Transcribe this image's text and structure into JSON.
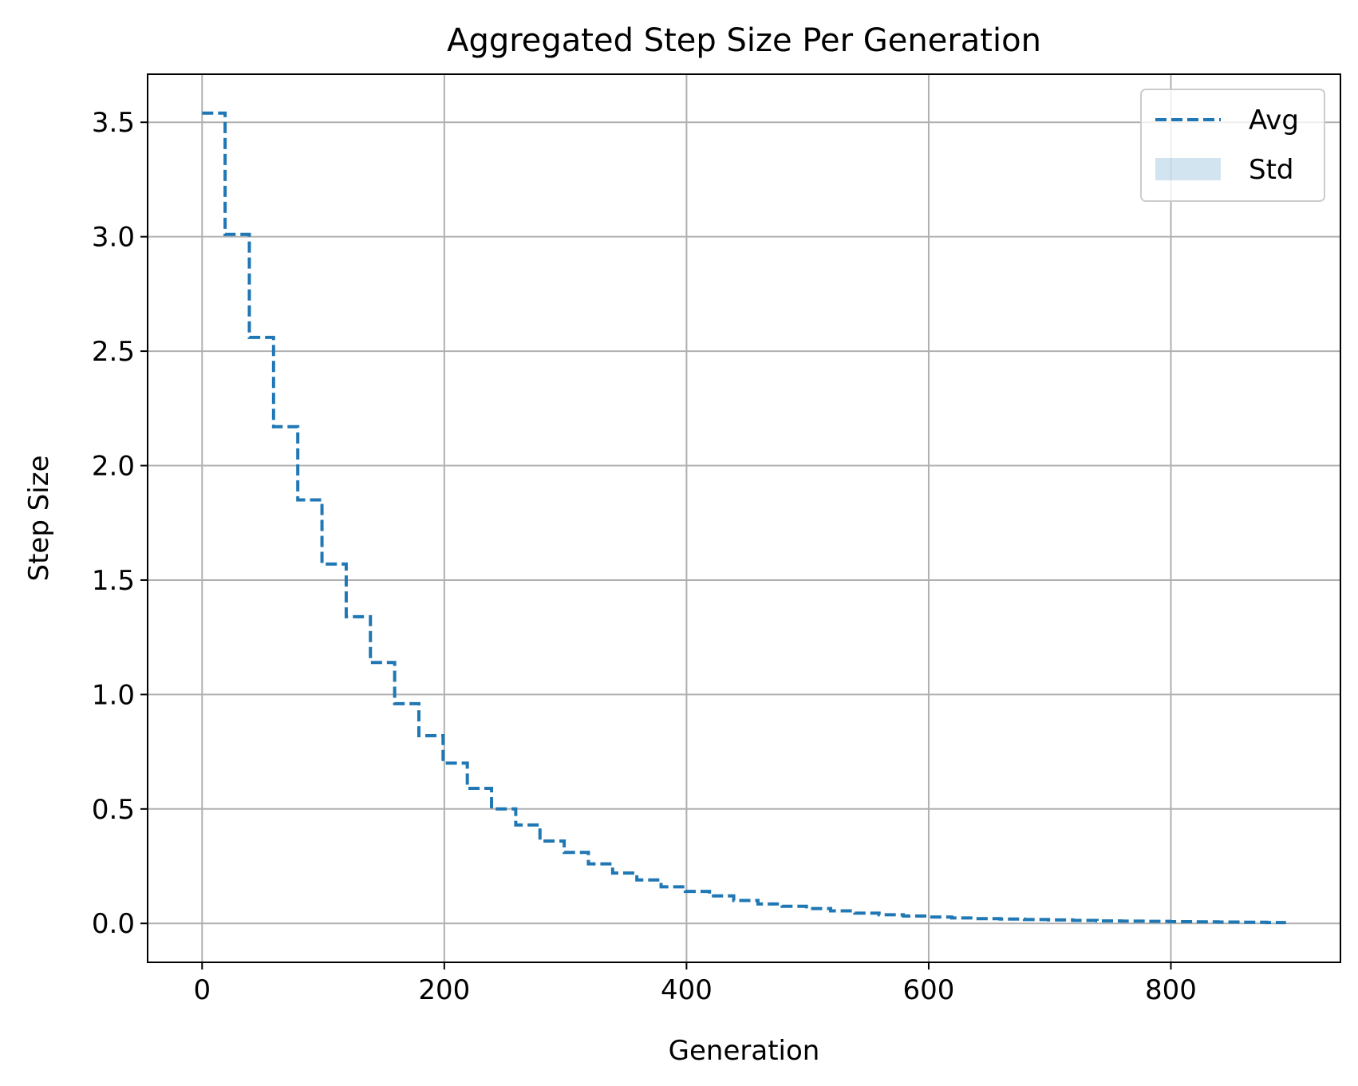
{
  "chart_data": {
    "type": "line",
    "title": "Aggregated Step Size Per Generation",
    "xlabel": "Generation",
    "ylabel": "Step Size",
    "xlim": [
      -45,
      940
    ],
    "ylim": [
      -0.17,
      3.71
    ],
    "x_ticks": [
      0,
      200,
      400,
      600,
      800
    ],
    "y_ticks": [
      0.0,
      0.5,
      1.0,
      1.5,
      2.0,
      2.5,
      3.0,
      3.5
    ],
    "x_tick_labels": [
      "0",
      "200",
      "400",
      "600",
      "800"
    ],
    "y_tick_labels": [
      "0.0",
      "0.5",
      "1.0",
      "1.5",
      "2.0",
      "2.5",
      "3.0",
      "3.5"
    ],
    "grid": true,
    "legend_position": "top-right",
    "colors": {
      "avg": "#1f77b4",
      "std_fill": "#1f77b4"
    },
    "series": [
      {
        "name": "Avg",
        "style": "dashed-step",
        "x": [
          0,
          19,
          39,
          59,
          79,
          99,
          119,
          139,
          159,
          179,
          199,
          219,
          239,
          259,
          279,
          299,
          319,
          339,
          359,
          379,
          399,
          419,
          439,
          459,
          479,
          499,
          519,
          539,
          559,
          579,
          599,
          619,
          639,
          659,
          679,
          699,
          719,
          739,
          759,
          779,
          799,
          819,
          839,
          859,
          879,
          895
        ],
        "y": [
          3.54,
          3.01,
          2.56,
          2.17,
          1.85,
          1.57,
          1.34,
          1.14,
          0.96,
          0.82,
          0.7,
          0.59,
          0.5,
          0.43,
          0.36,
          0.31,
          0.26,
          0.22,
          0.19,
          0.16,
          0.14,
          0.12,
          0.1,
          0.085,
          0.075,
          0.065,
          0.055,
          0.045,
          0.038,
          0.032,
          0.028,
          0.024,
          0.021,
          0.019,
          0.017,
          0.015,
          0.013,
          0.011,
          0.01,
          0.009,
          0.008,
          0.007,
          0.006,
          0.005,
          0.004,
          0.004
        ]
      },
      {
        "name": "Std",
        "style": "fill-band",
        "x": [],
        "lower": [],
        "upper": []
      }
    ]
  }
}
